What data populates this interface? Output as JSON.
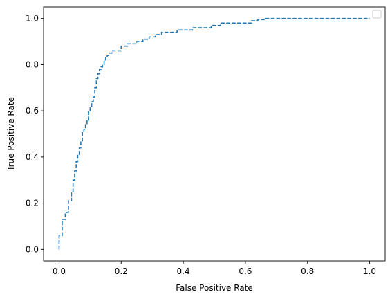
{
  "chart_data": {
    "type": "line",
    "title": "",
    "xlabel": "False Positive Rate",
    "ylabel": "True Positive Rate",
    "xlim": [
      -0.05,
      1.05
    ],
    "ylim": [
      -0.05,
      1.05
    ],
    "xticks": [
      0.0,
      0.2,
      0.4,
      0.6,
      0.8,
      1.0
    ],
    "xtick_labels": [
      "0.0",
      "0.2",
      "0.4",
      "0.6",
      "0.8",
      "1.0"
    ],
    "yticks": [
      0.0,
      0.2,
      0.4,
      0.6,
      0.8,
      1.0
    ],
    "ytick_labels": [
      "0.0",
      "0.2",
      "0.4",
      "0.6",
      "0.8",
      "1.0"
    ],
    "grid": false,
    "legend": {
      "placement": "top-right",
      "entries": []
    },
    "series": [
      {
        "style": "dashed",
        "color": "#1f77b4",
        "x": [
          0.0,
          0.0,
          0.01,
          0.01,
          0.02,
          0.02,
          0.03,
          0.03,
          0.04,
          0.04,
          0.045,
          0.045,
          0.05,
          0.05,
          0.055,
          0.055,
          0.06,
          0.06,
          0.065,
          0.065,
          0.07,
          0.07,
          0.075,
          0.075,
          0.08,
          0.08,
          0.085,
          0.085,
          0.09,
          0.09,
          0.095,
          0.095,
          0.1,
          0.1,
          0.105,
          0.105,
          0.11,
          0.11,
          0.115,
          0.115,
          0.12,
          0.12,
          0.125,
          0.125,
          0.13,
          0.13,
          0.135,
          0.135,
          0.14,
          0.14,
          0.145,
          0.145,
          0.15,
          0.15,
          0.155,
          0.155,
          0.16,
          0.16,
          0.17,
          0.17,
          0.18,
          0.18,
          0.2,
          0.2,
          0.22,
          0.22,
          0.25,
          0.25,
          0.27,
          0.27,
          0.29,
          0.29,
          0.31,
          0.31,
          0.33,
          0.33,
          0.38,
          0.38,
          0.43,
          0.43,
          0.49,
          0.49,
          0.52,
          0.52,
          0.56,
          0.56,
          0.62,
          0.62,
          0.64,
          0.64,
          0.66,
          0.66,
          0.68,
          0.68,
          0.88,
          0.88,
          1.0
        ],
        "y": [
          0.0,
          0.06,
          0.06,
          0.13,
          0.13,
          0.16,
          0.16,
          0.21,
          0.21,
          0.25,
          0.25,
          0.3,
          0.3,
          0.34,
          0.34,
          0.38,
          0.38,
          0.41,
          0.41,
          0.44,
          0.44,
          0.47,
          0.47,
          0.51,
          0.51,
          0.52,
          0.52,
          0.54,
          0.54,
          0.56,
          0.56,
          0.6,
          0.6,
          0.62,
          0.62,
          0.64,
          0.64,
          0.66,
          0.66,
          0.7,
          0.7,
          0.74,
          0.74,
          0.76,
          0.76,
          0.78,
          0.78,
          0.79,
          0.79,
          0.8,
          0.8,
          0.82,
          0.82,
          0.83,
          0.83,
          0.84,
          0.84,
          0.85,
          0.85,
          0.86,
          0.86,
          0.86,
          0.86,
          0.88,
          0.88,
          0.89,
          0.89,
          0.9,
          0.9,
          0.91,
          0.91,
          0.92,
          0.92,
          0.93,
          0.93,
          0.94,
          0.94,
          0.95,
          0.95,
          0.96,
          0.96,
          0.97,
          0.97,
          0.98,
          0.98,
          0.98,
          0.98,
          0.99,
          0.99,
          0.995,
          0.995,
          1.0,
          1.0,
          1.0,
          1.0,
          1.0,
          1.0
        ]
      }
    ]
  }
}
